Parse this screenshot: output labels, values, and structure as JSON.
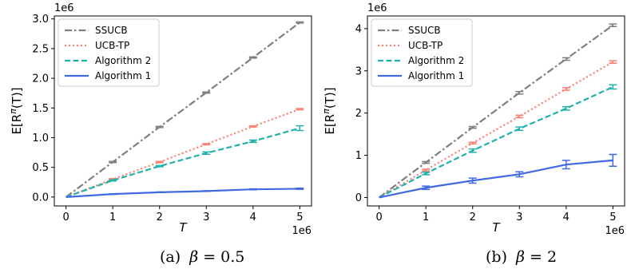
{
  "chart_data": [
    {
      "type": "line",
      "caption_prefix": "(a)",
      "caption_symbol": "β",
      "caption_eq": "= 0.5",
      "xlabel": "T",
      "ylabel": "E[R",
      "ylabel_sup": "π",
      "ylabel_suffix": "(T)]",
      "x_offset_text": "1e6",
      "y_offset_text": "1e6",
      "x": [
        0,
        1,
        2,
        3,
        4,
        5
      ],
      "xlim": [
        -0.25,
        5.25
      ],
      "ylim": [
        -0.15,
        3.05
      ],
      "xticks": [
        0,
        1,
        2,
        3,
        4,
        5
      ],
      "yticks": [
        0.0,
        0.5,
        1.0,
        1.5,
        2.0,
        2.5,
        3.0
      ],
      "ytick_labels": [
        "0.0",
        "0.5",
        "1.0",
        "1.5",
        "2.0",
        "2.5",
        "3.0"
      ],
      "legend_position": "top-left",
      "series": [
        {
          "name": "SSUCB",
          "color": "#7f7f7f",
          "style": "dashdot",
          "values": [
            0.0,
            0.59,
            1.18,
            1.76,
            2.35,
            2.94
          ],
          "err": [
            0,
            0.01,
            0.01,
            0.01,
            0.01,
            0.01
          ]
        },
        {
          "name": "UCB-TP",
          "color": "#fa8072",
          "style": "dotted",
          "values": [
            0.0,
            0.3,
            0.59,
            0.89,
            1.19,
            1.48
          ],
          "err": [
            0,
            0.01,
            0.01,
            0.01,
            0.01,
            0.01
          ]
        },
        {
          "name": "Algorithm 2",
          "color": "#20b2aa",
          "style": "dashed",
          "values": [
            0.0,
            0.28,
            0.52,
            0.74,
            0.94,
            1.16
          ],
          "err": [
            0,
            0.01,
            0.01,
            0.02,
            0.02,
            0.04
          ]
        },
        {
          "name": "Algorithm 1",
          "color": "#4169e1",
          "style": "solid",
          "values": [
            0.0,
            0.05,
            0.08,
            0.1,
            0.13,
            0.14
          ],
          "err": [
            0,
            0.005,
            0.005,
            0.005,
            0.008,
            0.01
          ]
        }
      ]
    },
    {
      "type": "line",
      "caption_prefix": "(b)",
      "caption_symbol": "β",
      "caption_eq": "= 2",
      "xlabel": "T",
      "ylabel": "E[R",
      "ylabel_sup": "π",
      "ylabel_suffix": "(T)]",
      "x_offset_text": "1e6",
      "y_offset_text": "1e6",
      "x": [
        0,
        1,
        2,
        3,
        4,
        5
      ],
      "xlim": [
        -0.25,
        5.25
      ],
      "ylim": [
        -0.2,
        4.3
      ],
      "xticks": [
        0,
        1,
        2,
        3,
        4,
        5
      ],
      "yticks": [
        0,
        1,
        2,
        3,
        4
      ],
      "ytick_labels": [
        "0",
        "1",
        "2",
        "3",
        "4"
      ],
      "legend_position": "top-left",
      "series": [
        {
          "name": "SSUCB",
          "color": "#7f7f7f",
          "style": "dashdot",
          "values": [
            0.0,
            0.83,
            1.66,
            2.48,
            3.28,
            4.08
          ],
          "err": [
            0,
            0.02,
            0.02,
            0.03,
            0.03,
            0.03
          ]
        },
        {
          "name": "UCB-TP",
          "color": "#fa8072",
          "style": "dotted",
          "values": [
            0.0,
            0.65,
            1.29,
            1.92,
            2.57,
            3.21
          ],
          "err": [
            0,
            0.02,
            0.02,
            0.03,
            0.03,
            0.03
          ]
        },
        {
          "name": "Algorithm 2",
          "color": "#20b2aa",
          "style": "dashed",
          "values": [
            0.0,
            0.57,
            1.11,
            1.63,
            2.11,
            2.62
          ],
          "err": [
            0,
            0.03,
            0.04,
            0.04,
            0.04,
            0.05
          ]
        },
        {
          "name": "Algorithm 1",
          "color": "#4169e1",
          "style": "solid",
          "values": [
            0.0,
            0.23,
            0.4,
            0.55,
            0.78,
            0.88
          ],
          "err": [
            0,
            0.04,
            0.06,
            0.06,
            0.1,
            0.14
          ]
        }
      ]
    }
  ]
}
